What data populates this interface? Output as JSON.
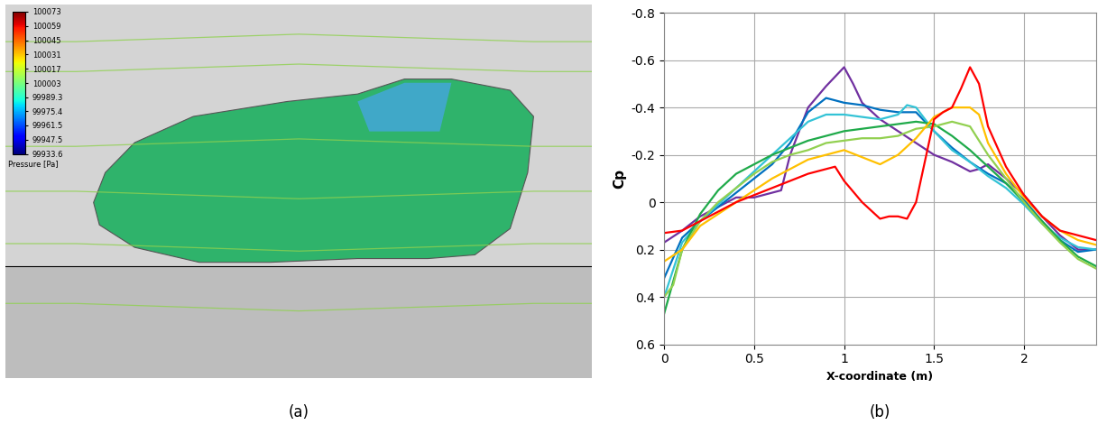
{
  "chart_data": [
    {
      "type": "contour",
      "caption": "(a)",
      "colorbar_label": "Pressure [Pa]",
      "colorbar_range": [
        99933.6,
        100073
      ],
      "colorbar_ticks": [
        100073,
        100059,
        100045,
        100031,
        100017,
        100003,
        99989.3,
        99975.4,
        99961.5,
        99947.5,
        99933.6
      ]
    },
    {
      "type": "line",
      "caption": "(b)",
      "x_label": "X-coordinate (m)",
      "y_label": "Cp",
      "xlim": [
        0,
        2.4
      ],
      "ylim": [
        0.6,
        -0.8
      ],
      "xticks": [
        0,
        0.5,
        1,
        1.5,
        2
      ],
      "yticks": [
        -0.8,
        -0.6,
        -0.4,
        -0.2,
        0,
        0.2,
        0.4,
        0.6
      ],
      "grid": true,
      "series": [
        {
          "color": "#7030a0",
          "x": [
            0,
            0.1,
            0.2,
            0.3,
            0.4,
            0.5,
            0.6,
            0.65,
            0.7,
            0.8,
            0.9,
            1.0,
            1.05,
            1.1,
            1.2,
            1.3,
            1.4,
            1.5,
            1.6,
            1.7,
            1.75,
            1.8,
            1.9,
            2.0,
            2.1,
            2.2,
            2.3,
            2.4
          ],
          "values": [
            0.17,
            0.12,
            0.06,
            0.02,
            -0.02,
            -0.02,
            -0.04,
            -0.05,
            -0.2,
            -0.4,
            -0.49,
            -0.57,
            -0.5,
            -0.42,
            -0.35,
            -0.3,
            -0.25,
            -0.2,
            -0.17,
            -0.13,
            -0.14,
            -0.16,
            -0.1,
            -0.03,
            0.06,
            0.14,
            0.2,
            0.2
          ]
        },
        {
          "color": "#0070c0",
          "x": [
            0,
            0.1,
            0.2,
            0.3,
            0.4,
            0.5,
            0.6,
            0.7,
            0.8,
            0.9,
            1.0,
            1.1,
            1.2,
            1.3,
            1.4,
            1.5,
            1.6,
            1.7,
            1.8,
            1.9,
            2.0,
            2.1,
            2.2,
            2.3,
            2.4
          ],
          "values": [
            0.32,
            0.15,
            0.08,
            0.02,
            -0.04,
            -0.1,
            -0.16,
            -0.25,
            -0.38,
            -0.44,
            -0.42,
            -0.41,
            -0.39,
            -0.38,
            -0.38,
            -0.3,
            -0.23,
            -0.17,
            -0.12,
            -0.08,
            -0.01,
            0.08,
            0.16,
            0.21,
            0.2
          ]
        },
        {
          "color": "#33c3d6",
          "x": [
            0,
            0.1,
            0.2,
            0.3,
            0.4,
            0.5,
            0.6,
            0.7,
            0.8,
            0.9,
            1.0,
            1.1,
            1.2,
            1.3,
            1.35,
            1.4,
            1.5,
            1.6,
            1.7,
            1.8,
            1.9,
            2.0,
            2.1,
            2.2,
            2.3,
            2.4
          ],
          "values": [
            0.4,
            0.17,
            0.08,
            0.01,
            -0.06,
            -0.13,
            -0.2,
            -0.27,
            -0.34,
            -0.37,
            -0.37,
            -0.36,
            -0.35,
            -0.37,
            -0.41,
            -0.4,
            -0.3,
            -0.22,
            -0.17,
            -0.11,
            -0.06,
            0.01,
            0.09,
            0.15,
            0.19,
            0.2
          ]
        },
        {
          "color": "#1faa4a",
          "x": [
            0,
            0.1,
            0.2,
            0.3,
            0.4,
            0.5,
            0.6,
            0.7,
            0.8,
            0.9,
            1.0,
            1.1,
            1.2,
            1.3,
            1.4,
            1.5,
            1.6,
            1.7,
            1.8,
            1.9,
            2.0,
            2.1,
            2.2,
            2.3,
            2.4
          ],
          "values": [
            0.47,
            0.2,
            0.05,
            -0.05,
            -0.12,
            -0.16,
            -0.2,
            -0.23,
            -0.26,
            -0.28,
            -0.3,
            -0.31,
            -0.32,
            -0.33,
            -0.34,
            -0.33,
            -0.28,
            -0.22,
            -0.15,
            -0.08,
            0.0,
            0.08,
            0.16,
            0.23,
            0.27
          ]
        },
        {
          "color": "#92d050",
          "x": [
            0,
            0.05,
            0.1,
            0.2,
            0.3,
            0.4,
            0.5,
            0.6,
            0.7,
            0.8,
            0.9,
            1.0,
            1.1,
            1.2,
            1.3,
            1.4,
            1.5,
            1.6,
            1.7,
            1.8,
            1.9,
            2.0,
            2.1,
            2.2,
            2.3,
            2.4
          ],
          "values": [
            0.4,
            0.35,
            0.2,
            0.08,
            0.0,
            -0.06,
            -0.12,
            -0.17,
            -0.2,
            -0.22,
            -0.25,
            -0.26,
            -0.27,
            -0.27,
            -0.28,
            -0.31,
            -0.32,
            -0.34,
            -0.32,
            -0.2,
            -0.1,
            0.0,
            0.09,
            0.17,
            0.24,
            0.28
          ]
        },
        {
          "color": "#ffc000",
          "x": [
            0,
            0.1,
            0.2,
            0.3,
            0.4,
            0.5,
            0.6,
            0.7,
            0.8,
            0.9,
            1.0,
            1.1,
            1.2,
            1.3,
            1.4,
            1.5,
            1.6,
            1.7,
            1.75,
            1.8,
            1.9,
            2.0,
            2.1,
            2.2,
            2.3,
            2.4
          ],
          "values": [
            0.25,
            0.2,
            0.1,
            0.05,
            0.0,
            -0.05,
            -0.1,
            -0.14,
            -0.18,
            -0.2,
            -0.22,
            -0.19,
            -0.16,
            -0.2,
            -0.27,
            -0.36,
            -0.4,
            -0.4,
            -0.37,
            -0.25,
            -0.12,
            -0.02,
            0.06,
            0.12,
            0.16,
            0.18
          ]
        },
        {
          "color": "#ff0000",
          "x": [
            0,
            0.1,
            0.2,
            0.3,
            0.4,
            0.5,
            0.6,
            0.7,
            0.8,
            0.9,
            0.95,
            1.0,
            1.1,
            1.2,
            1.25,
            1.3,
            1.35,
            1.4,
            1.5,
            1.55,
            1.6,
            1.65,
            1.7,
            1.75,
            1.8,
            1.9,
            2.0,
            2.1,
            2.2,
            2.3,
            2.4
          ],
          "values": [
            0.13,
            0.12,
            0.08,
            0.04,
            0.0,
            -0.03,
            -0.06,
            -0.09,
            -0.12,
            -0.14,
            -0.15,
            -0.09,
            0.0,
            0.07,
            0.06,
            0.06,
            0.07,
            0.0,
            -0.35,
            -0.38,
            -0.4,
            -0.48,
            -0.57,
            -0.5,
            -0.32,
            -0.15,
            -0.03,
            0.06,
            0.12,
            0.14,
            0.16
          ]
        }
      ]
    }
  ]
}
